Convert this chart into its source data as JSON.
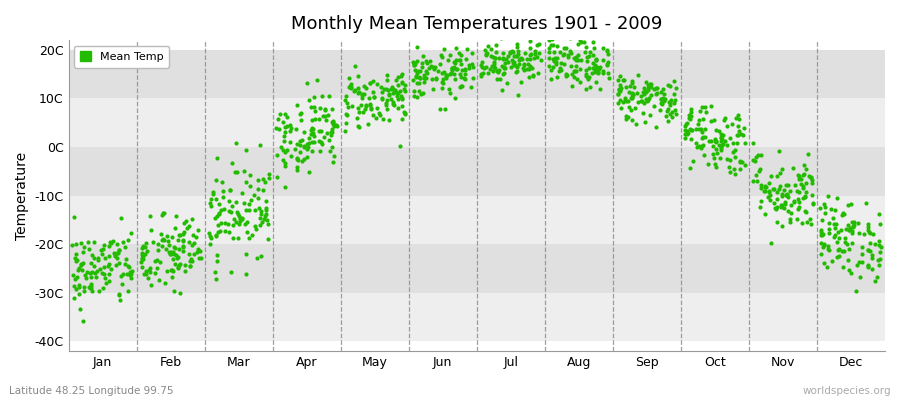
{
  "title": "Monthly Mean Temperatures 1901 - 2009",
  "ylabel": "Temperature",
  "xlabel_months": [
    "Jan",
    "Feb",
    "Mar",
    "Apr",
    "May",
    "Jun",
    "Jul",
    "Aug",
    "Sep",
    "Oct",
    "Nov",
    "Dec"
  ],
  "ytick_labels": [
    "-40C",
    "-30C",
    "-20C",
    "-10C",
    "0C",
    "10C",
    "20C"
  ],
  "ytick_values": [
    -40,
    -30,
    -20,
    -10,
    0,
    10,
    20
  ],
  "ylim": [
    -42,
    22
  ],
  "dot_color": "#22bb00",
  "legend_label": "Mean Temp",
  "bottom_left_text": "Latitude 48.25 Longitude 99.75",
  "bottom_right_text": "worldspecies.org",
  "plot_bg_light": "#eeeeee",
  "plot_bg_dark": "#e0e0e0",
  "fig_background": "#ffffff",
  "n_years": 109,
  "monthly_means": [
    -25,
    -22,
    -13,
    3,
    10,
    15,
    18,
    17,
    10,
    2,
    -9,
    -19
  ],
  "monthly_stds": [
    4,
    4,
    5,
    4,
    3,
    2.5,
    2.5,
    2.5,
    2.5,
    3.5,
    4,
    4
  ],
  "random_seed": 42
}
